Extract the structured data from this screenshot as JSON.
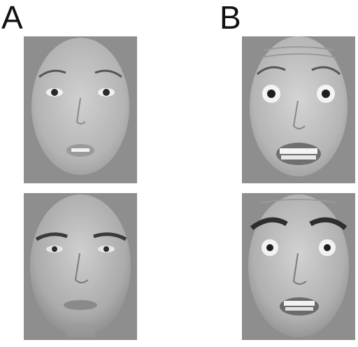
{
  "figure": {
    "panels": [
      {
        "label": "A",
        "faces": [
          {
            "name": "female-neutral-face",
            "expression": "neutral"
          },
          {
            "name": "male-neutral-face",
            "expression": "neutral"
          }
        ]
      },
      {
        "label": "B",
        "faces": [
          {
            "name": "female-fearful-face",
            "expression": "fearful"
          },
          {
            "name": "male-fearful-face",
            "expression": "fearful"
          }
        ]
      }
    ]
  },
  "colors": {
    "background": "#ffffff",
    "photo_bg": "#8e8e8e",
    "label": "#111111"
  }
}
